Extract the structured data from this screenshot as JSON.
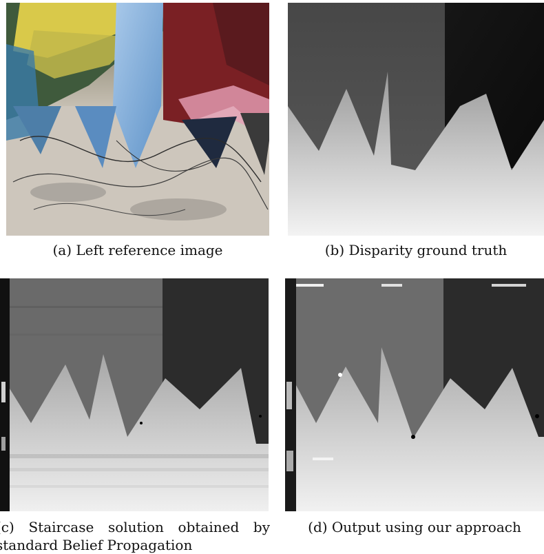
{
  "figure": {
    "panels": [
      {
        "caption": "(a) Left reference image"
      },
      {
        "caption": "(b) Disparity ground truth"
      },
      {
        "caption": "(c) Staircase solution obtained by standard Belief Propagation"
      },
      {
        "caption": "(d) Output using our approach"
      }
    ]
  }
}
